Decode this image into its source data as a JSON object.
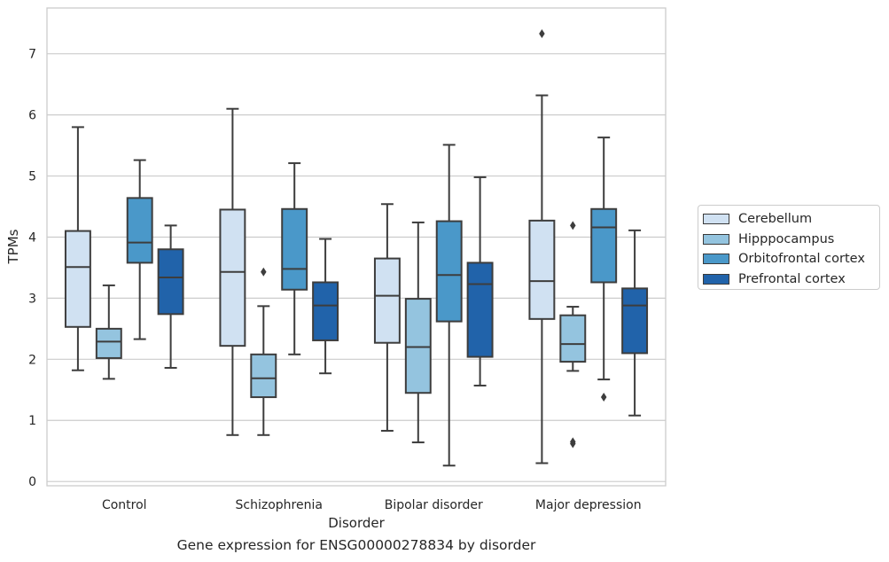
{
  "caption": "Gene expression for ENSG00000278834 by disorder",
  "chart_data": {
    "type": "box",
    "xlabel": "Disorder",
    "ylabel": "TPMs",
    "ylim": [
      -0.07,
      7.75
    ],
    "yticks": [
      0,
      1,
      2,
      3,
      4,
      5,
      6,
      7
    ],
    "grid": true,
    "legend_position": "right",
    "categories": [
      "Control",
      "Schizophrenia",
      "Bipolar disorder",
      "Major depression"
    ],
    "series": [
      {
        "name": "Cerebellum",
        "color": "#d0e1f2",
        "boxes": [
          {
            "whislo": 1.82,
            "q1": 2.53,
            "med": 3.51,
            "q3": 4.1,
            "whishi": 5.8,
            "fliers": []
          },
          {
            "whislo": 0.76,
            "q1": 2.22,
            "med": 3.43,
            "q3": 4.45,
            "whishi": 6.1,
            "fliers": []
          },
          {
            "whislo": 0.83,
            "q1": 2.27,
            "med": 3.04,
            "q3": 3.65,
            "whishi": 4.54,
            "fliers": []
          },
          {
            "whislo": 0.3,
            "q1": 2.66,
            "med": 3.28,
            "q3": 4.27,
            "whishi": 6.32,
            "fliers": [
              7.33
            ]
          }
        ]
      },
      {
        "name": "Hipppocampus",
        "color": "#94c4df",
        "boxes": [
          {
            "whislo": 1.68,
            "q1": 2.02,
            "med": 2.29,
            "q3": 2.5,
            "whishi": 3.21,
            "fliers": []
          },
          {
            "whislo": 0.76,
            "q1": 1.38,
            "med": 1.69,
            "q3": 2.08,
            "whishi": 2.87,
            "fliers": [
              3.43
            ]
          },
          {
            "whislo": 0.64,
            "q1": 1.45,
            "med": 2.2,
            "q3": 2.99,
            "whishi": 4.24,
            "fliers": []
          },
          {
            "whislo": 1.81,
            "q1": 1.96,
            "med": 2.25,
            "q3": 2.72,
            "whishi": 2.86,
            "fliers": [
              4.19,
              0.62,
              0.65
            ]
          }
        ]
      },
      {
        "name": "Orbitofrontal cortex",
        "color": "#4a98c9",
        "boxes": [
          {
            "whislo": 2.33,
            "q1": 3.58,
            "med": 3.91,
            "q3": 4.64,
            "whishi": 5.26,
            "fliers": []
          },
          {
            "whislo": 2.08,
            "q1": 3.14,
            "med": 3.48,
            "q3": 4.46,
            "whishi": 5.21,
            "fliers": []
          },
          {
            "whislo": 0.26,
            "q1": 2.62,
            "med": 3.38,
            "q3": 4.26,
            "whishi": 5.51,
            "fliers": []
          },
          {
            "whislo": 1.67,
            "q1": 3.26,
            "med": 4.16,
            "q3": 4.46,
            "whishi": 5.63,
            "fliers": [
              1.38
            ]
          }
        ]
      },
      {
        "name": "Prefrontal cortex",
        "color": "#2163aa",
        "boxes": [
          {
            "whislo": 1.86,
            "q1": 2.74,
            "med": 3.34,
            "q3": 3.8,
            "whishi": 4.19,
            "fliers": []
          },
          {
            "whislo": 1.77,
            "q1": 2.31,
            "med": 2.88,
            "q3": 3.26,
            "whishi": 3.97,
            "fliers": []
          },
          {
            "whislo": 1.57,
            "q1": 2.04,
            "med": 3.23,
            "q3": 3.58,
            "whishi": 4.98,
            "fliers": []
          },
          {
            "whislo": 1.08,
            "q1": 2.1,
            "med": 2.88,
            "q3": 3.16,
            "whishi": 4.11,
            "fliers": []
          }
        ]
      }
    ]
  }
}
